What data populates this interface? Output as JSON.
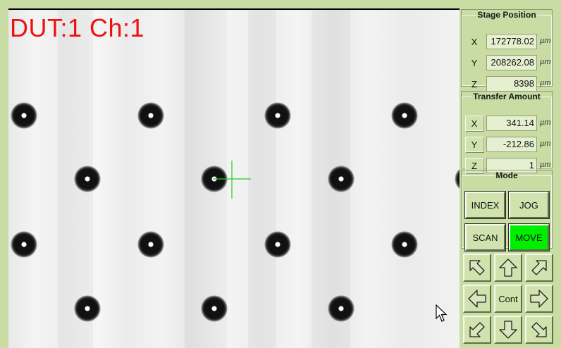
{
  "camera": {
    "label": "DUT:1 Ch:1"
  },
  "stage_position": {
    "title": "Stage Position",
    "rows": [
      {
        "axis": "X",
        "value": "172778.02",
        "unit": "µm"
      },
      {
        "axis": "Y",
        "value": "208262.08",
        "unit": "µm"
      },
      {
        "axis": "Z",
        "value": "8398",
        "unit": "µm"
      }
    ]
  },
  "transfer_amount": {
    "title": "Transfer Amount",
    "rows": [
      {
        "axis": "X",
        "value": "341.14",
        "unit": "µm"
      },
      {
        "axis": "Y",
        "value": "-212.86",
        "unit": "µm"
      },
      {
        "axis": "Z",
        "value": "1",
        "unit": "µm"
      }
    ]
  },
  "mode": {
    "title": "Mode",
    "buttons": [
      "INDEX",
      "JOG",
      "SCAN",
      "MOVE"
    ],
    "active": "MOVE",
    "active_color": "#00ee00"
  },
  "jog_pad": {
    "center_label": "Cont",
    "icons": [
      "arrow-up-left-icon",
      "arrow-up-icon",
      "arrow-up-right-icon",
      "arrow-left-icon",
      "arrow-right-icon",
      "arrow-down-left-icon",
      "arrow-down-icon",
      "arrow-down-right-icon"
    ]
  },
  "colors": {
    "panel_bg": "#c8dca4",
    "label_red": "#ee1111",
    "crosshair": "#22cc22"
  }
}
